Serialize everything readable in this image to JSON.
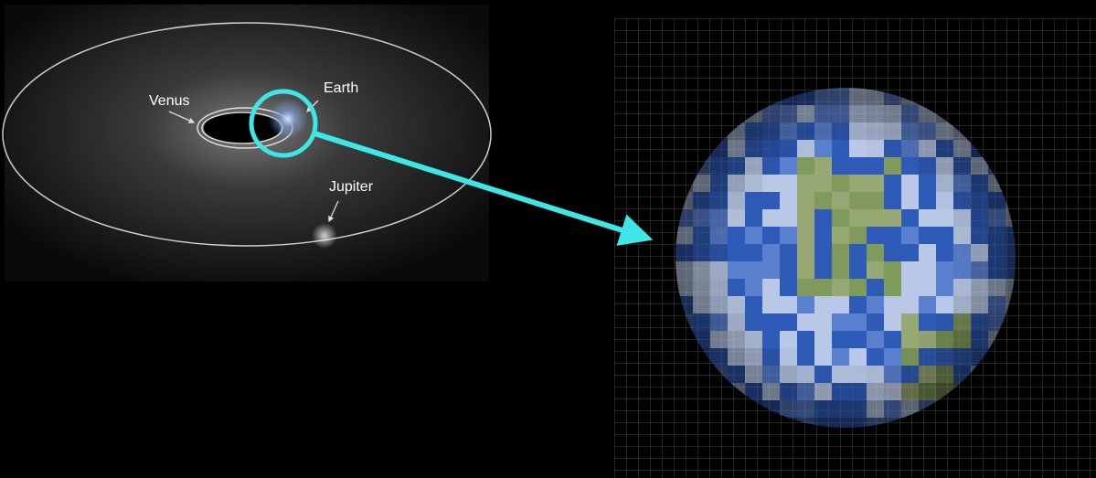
{
  "labels": [
    "Venus",
    "Earth",
    "Jupiter"
  ]
}
